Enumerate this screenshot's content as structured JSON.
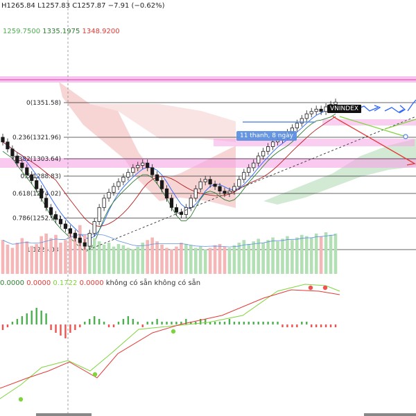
{
  "header": {
    "high": "H1265.84",
    "low": "L1257.83",
    "close": "C1257.87",
    "change": "−7.91 (−0.62%)"
  },
  "ichimoku_legend": {
    "v1": "1259.7500",
    "v2": "1335.1975",
    "v3": "1348.9200"
  },
  "macd_legend": {
    "v1": "0.0000",
    "v2": "0.0000",
    "v3": "0.1722",
    "v4": "0.0000",
    "n1": "không có sẵn",
    "n2": "không có sẵn"
  },
  "symbol_badge": "VNINDEX",
  "tooltip": "11 thanh, 8 ngày",
  "colors": {
    "up": "#1a1a1a",
    "down": "#ef5350",
    "fib": "#333333",
    "ichimoku_band_red": "#f4c7c7",
    "ichimoku_band_green": "#cde7cf",
    "pink_zone": "#f5a5e6",
    "arrow_blue": "#2962ff",
    "arrow_red": "#e53935",
    "arrow_green": "#7fd43b",
    "macd_green": "#4caf50",
    "macd_red": "#ef5350"
  },
  "chart_data": {
    "type": "candlestick",
    "title": "VNINDEX",
    "fib_levels": [
      {
        "label": "0(1351.58)",
        "ratio": 0,
        "price": 1351.58
      },
      {
        "label": "0.236(1321.96)",
        "ratio": 0.236,
        "price": 1321.96
      },
      {
        "label": "0.382(1303.64)",
        "ratio": 0.382,
        "price": 1303.64
      },
      {
        "label": "0.5(1288.83)",
        "ratio": 0.5,
        "price": 1288.83
      },
      {
        "label": "0.618(1274.02)",
        "ratio": 0.618,
        "price": 1274.02
      },
      {
        "label": "0.786(1252.94)",
        "ratio": 0.786,
        "price": 1252.94
      },
      {
        "label": "1(1226.08)",
        "ratio": 1,
        "price": 1226.08
      }
    ],
    "price_range": [
      1215,
      1385
    ],
    "closes": [
      1318,
      1312,
      1306,
      1300,
      1296,
      1290,
      1285,
      1278,
      1270,
      1262,
      1256,
      1252,
      1248,
      1244,
      1240,
      1236,
      1232,
      1229,
      1240,
      1250,
      1262,
      1270,
      1275,
      1280,
      1284,
      1288,
      1292,
      1296,
      1298,
      1300,
      1296,
      1290,
      1285,
      1278,
      1270,
      1262,
      1258,
      1256,
      1262,
      1270,
      1278,
      1284,
      1286,
      1282,
      1280,
      1276,
      1274,
      1276,
      1280,
      1286,
      1292,
      1296,
      1300,
      1306,
      1310,
      1314,
      1318,
      1320,
      1322,
      1326,
      1330,
      1334,
      1338,
      1342,
      1344,
      1346,
      1344,
      1348,
      1350,
      1352
    ],
    "volumes": [
      52,
      45,
      40,
      48,
      55,
      50,
      43,
      46,
      58,
      62,
      55,
      60,
      48,
      52,
      70,
      64,
      75,
      60,
      58,
      55,
      50,
      45,
      48,
      42,
      46,
      44,
      40,
      38,
      42,
      48,
      52,
      56,
      50,
      45,
      40,
      38,
      42,
      48,
      46,
      44,
      40,
      42,
      38,
      40,
      44,
      46,
      42,
      40,
      44,
      48,
      52,
      46,
      50,
      54,
      48,
      52,
      56,
      50,
      54,
      58,
      52,
      56,
      60,
      58,
      56,
      62,
      58,
      64,
      60,
      62
    ],
    "macd": [
      -2,
      -1,
      1,
      2,
      3,
      4,
      5,
      6,
      5,
      4,
      -2,
      -3,
      -4,
      -5,
      -3,
      -2,
      -1,
      1,
      2,
      3,
      2,
      1,
      -1,
      -1,
      1,
      2,
      3,
      2,
      1,
      -1,
      1,
      1,
      2,
      1,
      1,
      1,
      1,
      1,
      2,
      1,
      1,
      2,
      2,
      1,
      1,
      1,
      1,
      2,
      1,
      1,
      1,
      1,
      1,
      1,
      1,
      1,
      1,
      1,
      -1,
      -1,
      -1,
      -1,
      1,
      1,
      -1,
      -1,
      -1,
      -1,
      -1,
      -1
    ],
    "grid": false,
    "legend": "top-left"
  }
}
